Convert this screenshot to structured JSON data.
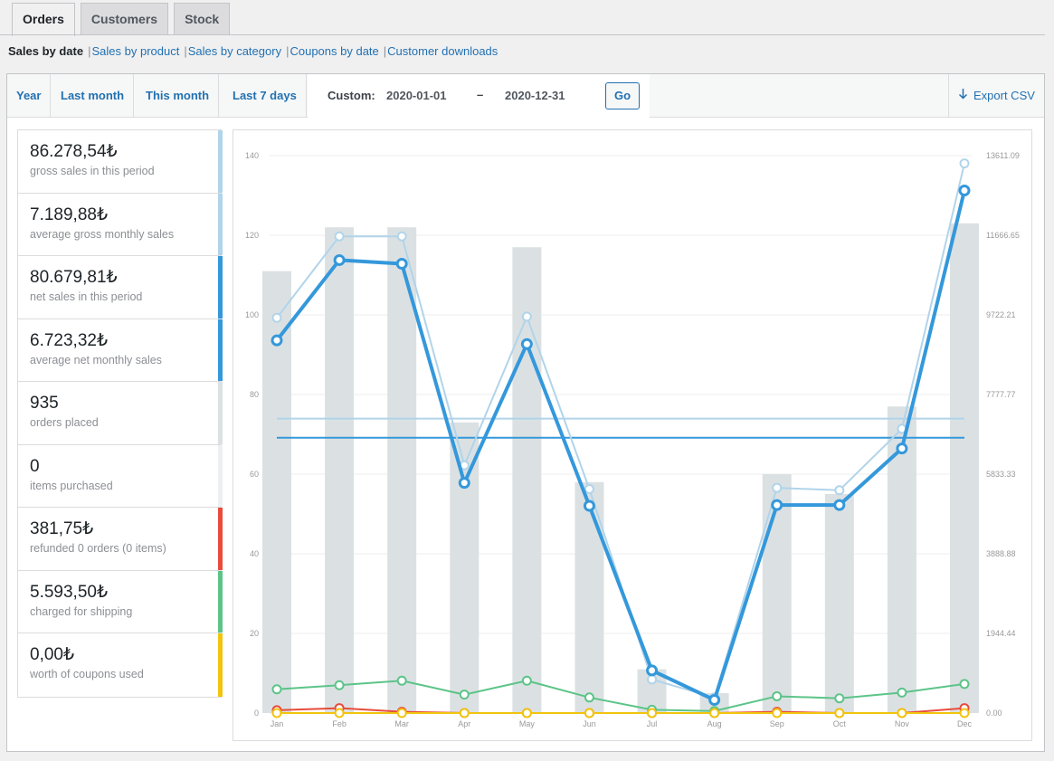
{
  "tabs": [
    "Orders",
    "Customers",
    "Stock"
  ],
  "subnav": {
    "current": "Sales by date",
    "links": [
      "Sales by product",
      "Sales by category",
      "Coupons by date",
      "Customer downloads"
    ]
  },
  "ranges": [
    "Year",
    "Last month",
    "This month",
    "Last 7 days"
  ],
  "custom": {
    "label": "Custom:",
    "from": "2020-01-01",
    "dash": "–",
    "to": "2020-12-31",
    "go": "Go"
  },
  "export_label": "Export CSV",
  "legend": [
    {
      "value": "86.278,54₺",
      "desc": "gross sales in this period",
      "color": "#b1d4ea"
    },
    {
      "value": "7.189,88₺",
      "desc": "average gross monthly sales",
      "color": "#b1d4ea"
    },
    {
      "value": "80.679,81₺",
      "desc": "net sales in this period",
      "color": "#3498db"
    },
    {
      "value": "6.723,32₺",
      "desc": "average net monthly sales",
      "color": "#3498db"
    },
    {
      "value": "935",
      "desc": "orders placed",
      "color": "#dbe1e3"
    },
    {
      "value": "0",
      "desc": "items purchased",
      "color": "#ecf0f1"
    },
    {
      "value": "381,75₺",
      "desc": "refunded 0 orders (0 items)",
      "color": "#e74c3c"
    },
    {
      "value": "5.593,50₺",
      "desc": "charged for shipping",
      "color": "#5cc488"
    },
    {
      "value": "0,00₺",
      "desc": "worth of coupons used",
      "color": "#f1c40f"
    }
  ],
  "chart_data": {
    "type": "bar",
    "categories": [
      "Jan",
      "Feb",
      "Mar",
      "Apr",
      "May",
      "Jun",
      "Jul",
      "Aug",
      "Sep",
      "Oct",
      "Nov",
      "Dec"
    ],
    "y_left_ticks": [
      "0",
      "20",
      "40",
      "60",
      "80",
      "100",
      "120",
      "140"
    ],
    "y_left_range": [
      0,
      140
    ],
    "y_right_ticks": [
      "0.00",
      "1944.44",
      "3888.88",
      "5833.33",
      "7777.77",
      "9722.21",
      "11666.65",
      "13611.09"
    ],
    "y_right_range": [
      0,
      13611.09
    ],
    "grid": true,
    "series": [
      {
        "type": "bar",
        "axis": "left",
        "color": "#dbe1e3",
        "values": [
          111,
          122,
          122,
          73,
          117,
          58,
          11,
          5,
          60,
          55,
          77,
          123
        ]
      },
      {
        "type": "line",
        "axis": "right",
        "color": "#b1d4ea",
        "values": [
          9650,
          11640,
          11640,
          6050,
          9680,
          5470,
          820,
          380,
          5500,
          5440,
          6940,
          13420
        ]
      },
      {
        "type": "line",
        "axis": "right",
        "color": "#3498db",
        "values": [
          9100,
          11060,
          10970,
          5620,
          9010,
          5060,
          1040,
          320,
          5080,
          5080,
          6460,
          12760
        ]
      },
      {
        "type": "line",
        "axis": "right",
        "color": "#5cc488",
        "values": [
          580,
          680,
          790,
          450,
          790,
          380,
          80,
          50,
          410,
          360,
          500,
          710
        ]
      },
      {
        "type": "line",
        "axis": "right",
        "color": "#e74c3c",
        "values": [
          70,
          120,
          30,
          0,
          0,
          0,
          0,
          0,
          30,
          0,
          0,
          120
        ]
      },
      {
        "type": "line",
        "axis": "right",
        "color": "#f1c40f",
        "values": [
          0,
          0,
          0,
          0,
          0,
          0,
          0,
          0,
          0,
          0,
          0,
          0
        ]
      },
      {
        "type": "average",
        "axis": "right",
        "color": "#b1d4ea",
        "value": 7189.88
      },
      {
        "type": "average",
        "axis": "right",
        "color": "#3498db",
        "value": 6723.32
      }
    ]
  }
}
